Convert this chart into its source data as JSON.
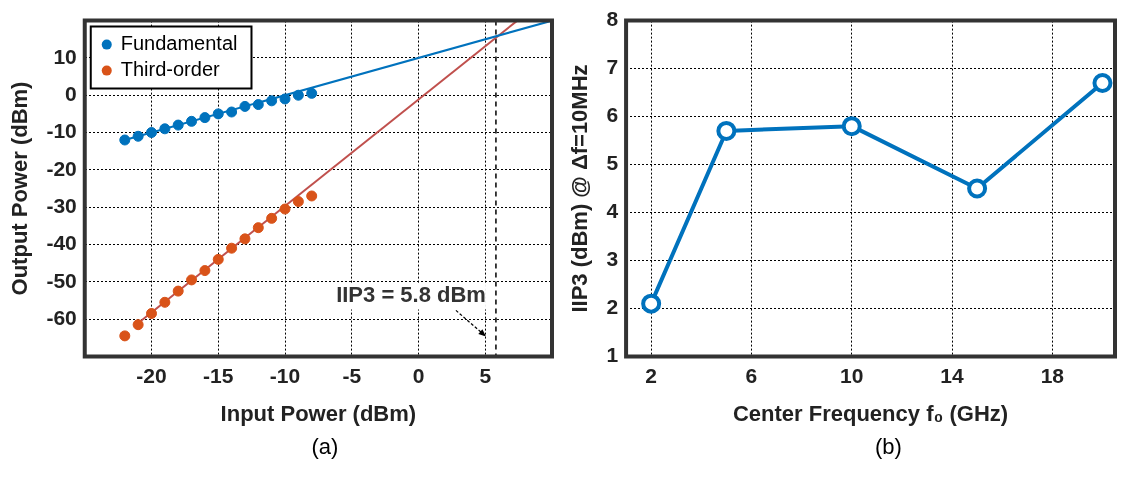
{
  "chart_data": [
    {
      "type": "scatter",
      "xlabel": "Input Power (dBm)",
      "ylabel": "Output Power (dBm)",
      "xlim": [
        -25,
        10
      ],
      "xticks": [
        -20,
        -15,
        -10,
        -5,
        0,
        5
      ],
      "ylim": [
        -70,
        20
      ],
      "yticks": [
        -60,
        -50,
        -40,
        -30,
        -20,
        -10,
        0,
        10
      ],
      "grid": true,
      "legend": "top left",
      "marker": "circle",
      "series": [
        {
          "name": "Fundamental",
          "color": "#0072bd",
          "x": [
            -22,
            -21,
            -20,
            -19,
            -18,
            -17,
            -16,
            -15,
            -14,
            -13,
            -12,
            -11,
            -10,
            -9,
            -8
          ],
          "values": [
            -12,
            -11,
            -10,
            -9,
            -8,
            -7,
            -6,
            -5,
            -4.5,
            -3,
            -2.5,
            -1.5,
            -1,
            0,
            0.5
          ]
        },
        {
          "name": "Third-order",
          "color": "#d95319",
          "x": [
            -22,
            -21,
            -20,
            -19,
            -18,
            -17,
            -16,
            -15,
            -14,
            -13,
            -12,
            -11,
            -10,
            -9,
            -8
          ],
          "values": [
            -64.5,
            -61.5,
            -58.5,
            -55.5,
            -52.5,
            -49.5,
            -47,
            -44,
            -41,
            -38.5,
            -35.5,
            -33,
            -30.5,
            -28.5,
            -27
          ]
        },
        {
          "type": "line",
          "marker": "none",
          "color": "#0072bd",
          "x": [
            -22,
            10
          ],
          "values": [
            -12,
            20
          ]
        },
        {
          "type": "line",
          "marker": "none",
          "color": "#c0504d",
          "x": [
            -20.8,
            7.4
          ],
          "values": [
            -60.5,
            20
          ]
        }
      ],
      "ref_lines": [
        {
          "axis": "x",
          "value": 5.8,
          "label": "IIP3 = 5.8 dBm",
          "line_style": "dashed",
          "color": "#000000"
        }
      ],
      "annotations": [
        "(a)"
      ]
    },
    {
      "type": "line",
      "xlabel": "Center Frequency f₀ (GHz)",
      "ylabel": "IIP3 (dBm) @ Δf=10MHz",
      "x": [
        2,
        5,
        10,
        15,
        20
      ],
      "xlim": [
        1,
        20.5
      ],
      "xticks": [
        2,
        6,
        10,
        14,
        18
      ],
      "ylim": [
        1,
        8
      ],
      "yticks": [
        1,
        2,
        3,
        4,
        5,
        6,
        7,
        8
      ],
      "grid": true,
      "marker": "circle",
      "series": [
        {
          "color": "#0072bd",
          "values": [
            2.1,
            5.7,
            5.8,
            4.5,
            6.7
          ]
        }
      ],
      "annotations": [
        "(b)"
      ]
    }
  ]
}
